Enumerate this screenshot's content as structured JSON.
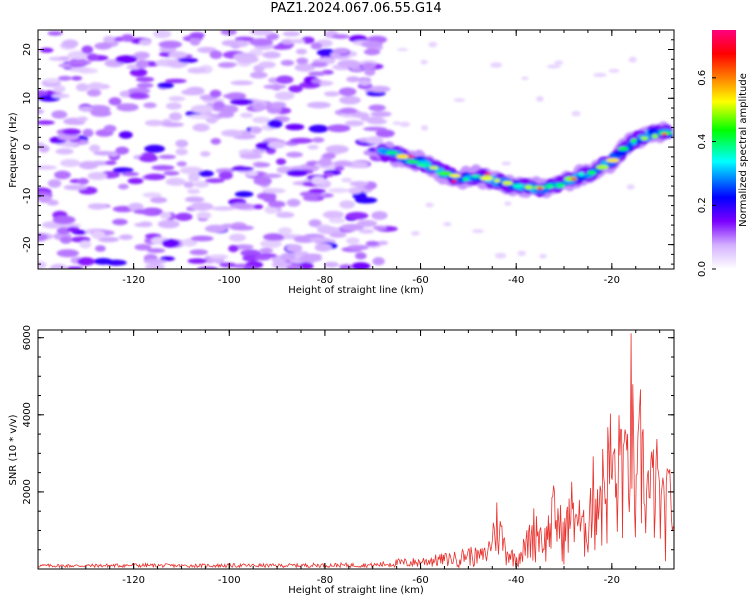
{
  "figure": {
    "title": "PAZ1.2024.067.06.55.G14"
  },
  "chart_data": [
    {
      "type": "heatmap",
      "title": "PAZ1.2024.067.06.55.G14",
      "xlabel": "Height of straight line (km)",
      "ylabel": "Frequency (Hz)",
      "xlim": [
        -140,
        -7
      ],
      "ylim": [
        -25,
        24
      ],
      "xticks": [
        -120,
        -100,
        -80,
        -60,
        -40,
        -20
      ],
      "yticks": [
        -20,
        -10,
        0,
        10,
        20
      ],
      "grid": false,
      "colorbar": {
        "label": "Normalized spectral amplitude",
        "range": [
          0,
          0.75
        ],
        "ticks": [
          "0.0",
          "0.2",
          "0.4",
          "0.6"
        ],
        "colors": [
          "#ffffff",
          "#d4b0ff",
          "#7a00ff",
          "#0000ff",
          "#00ffff",
          "#00ff00",
          "#ffff00",
          "#ff8000",
          "#ff0000",
          "#ff0080"
        ]
      },
      "ridge": {
        "description": "main spectral ridge",
        "x": [
          -68,
          -64,
          -60,
          -56,
          -52,
          -48,
          -44,
          -40,
          -36,
          -32,
          -28,
          -24,
          -20,
          -16,
          -12,
          -8
        ],
        "y": [
          -1,
          -2,
          -3,
          -5,
          -6.5,
          -6,
          -7,
          -8,
          -8.5,
          -8,
          -6.5,
          -5,
          -3,
          1,
          2.5,
          3
        ]
      },
      "noise_region": {
        "x_from": -140,
        "x_to": -67,
        "y_from": -25,
        "y_to": 24
      }
    },
    {
      "type": "line",
      "title": "",
      "xlabel": "Height of straight line (km)",
      "ylabel": "SNR (10 * v/v)",
      "xlim": [
        -140,
        -7
      ],
      "ylim": [
        0,
        6200
      ],
      "xticks": [
        -120,
        -100,
        -80,
        -60,
        -40,
        -20
      ],
      "yticks": [
        2000,
        4000,
        6000
      ],
      "grid": false,
      "series": [
        {
          "color": "#e8322e",
          "x": [
            -140,
            -130,
            -120,
            -110,
            -100,
            -90,
            -80,
            -70,
            -65,
            -60,
            -55,
            -52,
            -50,
            -48,
            -46,
            -45,
            -44,
            -42,
            -40,
            -38,
            -36,
            -34,
            -32,
            -30,
            -28,
            -26,
            -24,
            -22,
            -20,
            -19,
            -18,
            -17,
            -16,
            -15,
            -14,
            -13,
            -12,
            -11,
            -10,
            -9,
            -8,
            -7
          ],
          "y": [
            100,
            100,
            120,
            100,
            110,
            110,
            130,
            130,
            250,
            300,
            400,
            450,
            600,
            500,
            600,
            1300,
            1800,
            700,
            400,
            900,
            1700,
            1100,
            2200,
            1300,
            2500,
            1400,
            2800,
            3100,
            4300,
            2900,
            5000,
            3300,
            6200,
            2200,
            4700,
            3400,
            2800,
            3700,
            2700,
            2100,
            2800,
            2500
          ]
        }
      ]
    }
  ]
}
